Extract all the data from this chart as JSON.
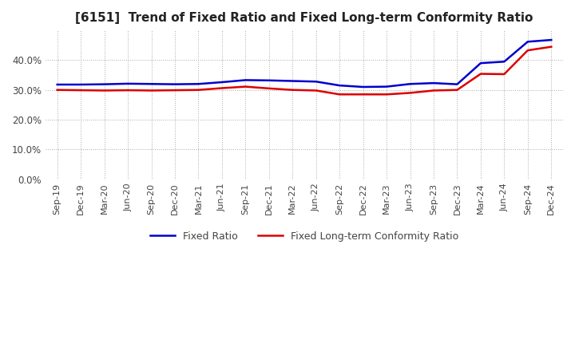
{
  "title": "[6151]  Trend of Fixed Ratio and Fixed Long-term Conformity Ratio",
  "title_fontsize": 11,
  "background_color": "#ffffff",
  "grid_color": "#aaaaaa",
  "fixed_ratio_color": "#0000cc",
  "fixed_ltcr_color": "#dd0000",
  "fixed_ratio_label": "Fixed Ratio",
  "fixed_ltcr_label": "Fixed Long-term Conformity Ratio",
  "x_labels": [
    "Sep-19",
    "Dec-19",
    "Mar-20",
    "Jun-20",
    "Sep-20",
    "Dec-20",
    "Mar-21",
    "Jun-21",
    "Sep-21",
    "Dec-21",
    "Mar-22",
    "Jun-22",
    "Sep-22",
    "Dec-22",
    "Mar-23",
    "Jun-23",
    "Sep-23",
    "Dec-23",
    "Mar-24",
    "Jun-24",
    "Sep-24",
    "Dec-24"
  ],
  "fixed_ratio": [
    0.318,
    0.318,
    0.319,
    0.321,
    0.32,
    0.319,
    0.32,
    0.326,
    0.333,
    0.332,
    0.33,
    0.328,
    0.315,
    0.31,
    0.311,
    0.32,
    0.323,
    0.319,
    0.39,
    0.395,
    0.462,
    0.468
  ],
  "fixed_ltcr": [
    0.3,
    0.299,
    0.298,
    0.299,
    0.298,
    0.299,
    0.3,
    0.306,
    0.311,
    0.305,
    0.3,
    0.298,
    0.285,
    0.285,
    0.285,
    0.29,
    0.298,
    0.3,
    0.354,
    0.353,
    0.433,
    0.445
  ],
  "ylim": [
    0.0,
    0.5
  ],
  "yticks": [
    0.0,
    0.1,
    0.2,
    0.3,
    0.4
  ],
  "line_width": 1.8
}
